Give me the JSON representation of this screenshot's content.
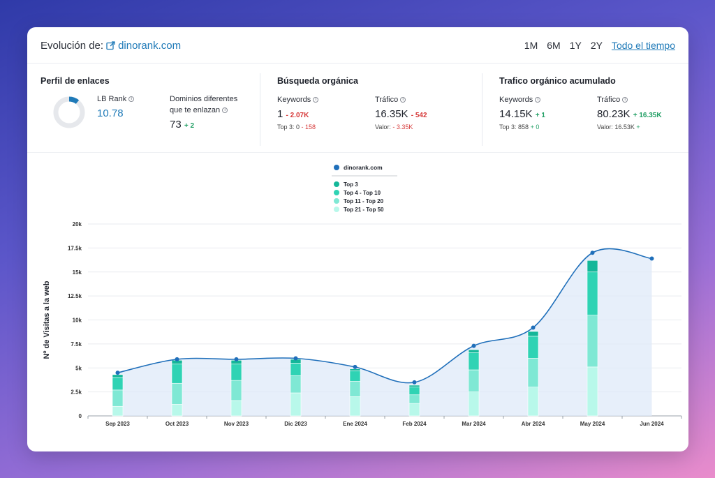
{
  "header": {
    "title_prefix": "Evolución de:",
    "domain": "dinorank.com",
    "periods": [
      "1M",
      "6M",
      "1Y",
      "2Y",
      "Todo el tiempo"
    ],
    "active_period": "Todo el tiempo"
  },
  "perfil": {
    "title": "Perfil de enlaces",
    "lb_rank_label": "LB Rank",
    "lb_rank_value": "10.78",
    "lb_rank_fraction": 0.1078,
    "dominios_label_1": "Dominios diferentes",
    "dominios_label_2": "que te enlazan",
    "dominios_value": "73",
    "dominios_delta": "+ 2"
  },
  "busqueda": {
    "title": "Búsqueda orgánica",
    "keywords_label": "Keywords",
    "keywords_value": "1",
    "keywords_delta": "- 2.07K",
    "keywords_sub_label": "Top 3: 0",
    "keywords_sub_delta": "- 158",
    "trafico_label": "Tráfico",
    "trafico_value": "16.35K",
    "trafico_delta": "- 542",
    "trafico_sub_label": "Valor:",
    "trafico_sub_delta": "- 3.35K"
  },
  "acumulado": {
    "title": "Trafico orgánico acumulado",
    "keywords_label": "Keywords",
    "keywords_value": "14.15K",
    "keywords_delta": "+ 1",
    "keywords_sub_label": "Top 3: 858",
    "keywords_sub_delta": "+ 0",
    "trafico_label": "Tráfico",
    "trafico_value": "80.23K",
    "trafico_delta": "+ 16.35K",
    "trafico_sub_label": "Valor: 16.53K",
    "trafico_sub_delta": "+"
  },
  "chart_data": {
    "type": "bar",
    "ylabel": "Nº de Visitas a la web",
    "xlabel": "",
    "ylim": [
      0,
      20000
    ],
    "y_ticks": [
      0,
      2500,
      5000,
      7500,
      10000,
      12500,
      15000,
      17500,
      20000
    ],
    "y_tick_labels": [
      "0",
      "2.5k",
      "5k",
      "7.5k",
      "10k",
      "12.5k",
      "15k",
      "17.5k",
      "20k"
    ],
    "categories": [
      "Sep 2023",
      "Oct 2023",
      "Nov 2023",
      "Dic 2023",
      "Ene 2024",
      "Feb 2024",
      "Mar 2024",
      "Abr 2024",
      "May 2024",
      "Jun 2024"
    ],
    "legend_placement": "top-center",
    "grid": true,
    "series": [
      {
        "name": "Top 21 - Top 50",
        "color": "#b8f8ea",
        "values": [
          1000,
          1200,
          1600,
          2400,
          2000,
          1300,
          2500,
          3000,
          5100,
          0
        ]
      },
      {
        "name": "Top 11 - Top 20",
        "color": "#7fe8d4",
        "values": [
          1700,
          2200,
          2100,
          1800,
          1600,
          900,
          2300,
          3000,
          5400,
          0
        ]
      },
      {
        "name": "Top 4 - Top 10",
        "color": "#2fd3b4",
        "values": [
          1300,
          2000,
          1700,
          1300,
          1100,
          800,
          1800,
          2300,
          4500,
          0
        ]
      },
      {
        "name": "Top 3",
        "color": "#14b799",
        "values": [
          300,
          400,
          400,
          400,
          200,
          200,
          300,
          500,
          1200,
          0
        ]
      }
    ],
    "line": {
      "name": "dinorank.com",
      "color": "#1f6fba",
      "values": [
        4500,
        5900,
        5900,
        6000,
        5100,
        3500,
        7300,
        9200,
        17000,
        16400
      ]
    }
  }
}
